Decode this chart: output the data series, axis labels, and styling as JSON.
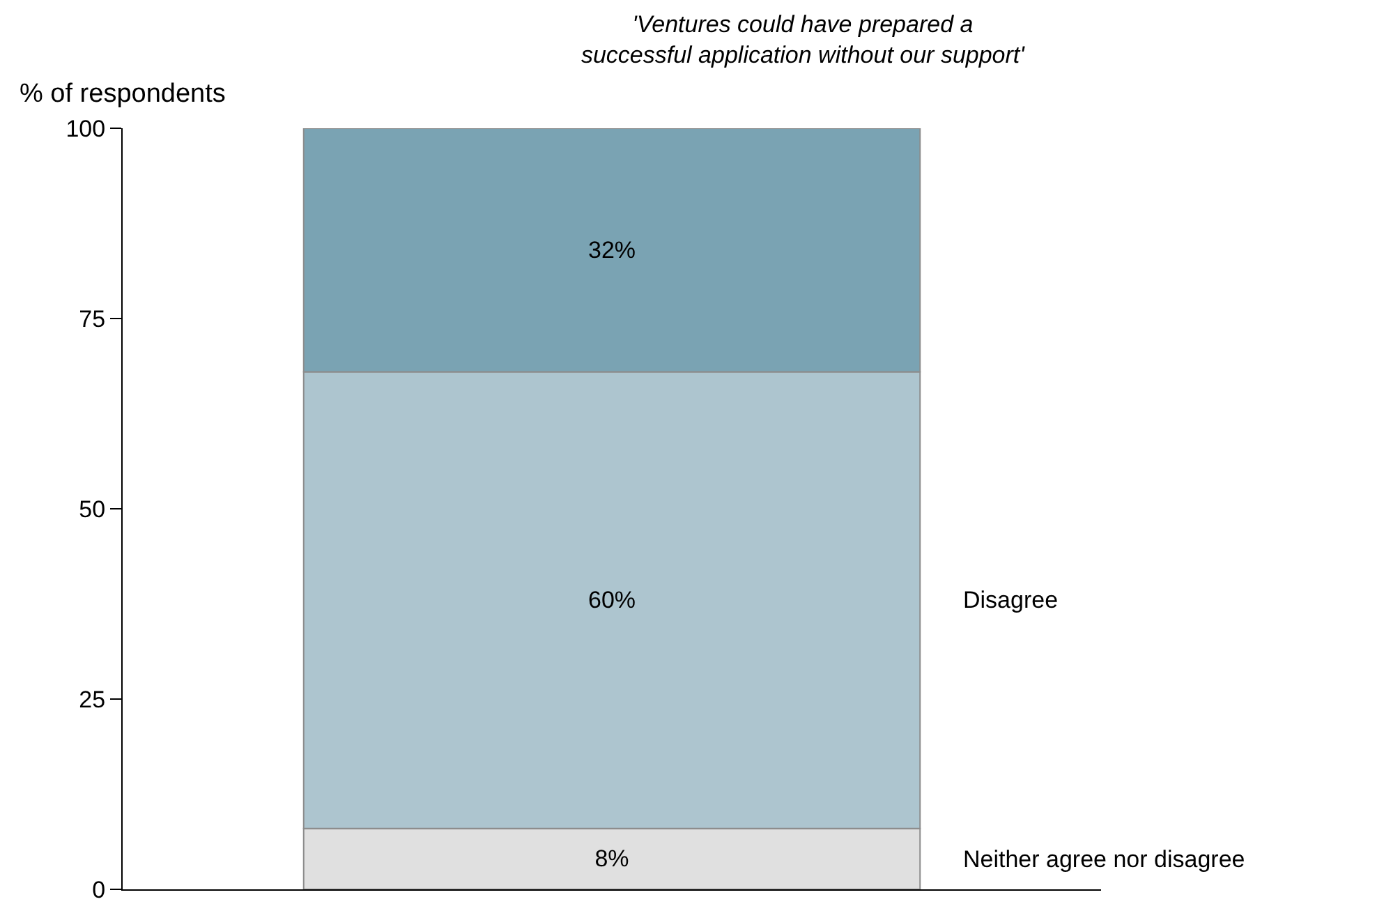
{
  "chart_data": {
    "type": "bar",
    "stacked": true,
    "title": "'Ventures could have prepared a\nsuccessful application without our support'",
    "ylabel": "% of respondents",
    "categories": [
      null
    ],
    "ylim": [
      0,
      100
    ],
    "yticks": [
      0,
      25,
      50,
      75,
      100
    ],
    "series": [
      {
        "name": "Neither agree nor disagree",
        "color": "#e0e0e0",
        "values": [
          8
        ],
        "value_labels": [
          "8%"
        ]
      },
      {
        "name": "Disagree",
        "color": "#adc5cf",
        "values": [
          60
        ],
        "value_labels": [
          "60%"
        ]
      },
      {
        "color": "#7aa3b3",
        "values": [
          32
        ],
        "value_labels": [
          "32%"
        ]
      }
    ]
  }
}
